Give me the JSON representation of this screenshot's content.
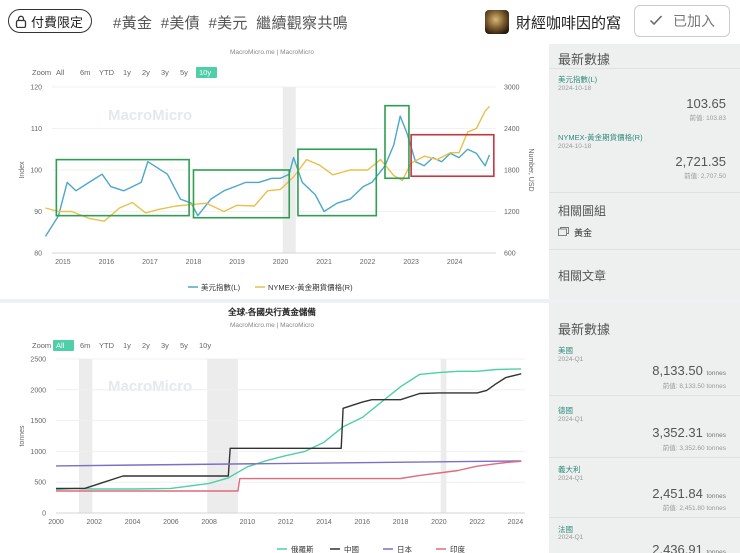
{
  "header": {
    "badge_label": "付費限定",
    "tags": [
      "#黃金",
      "#美債",
      "#美元",
      "繼續觀察共鳴"
    ],
    "channel_name": "財經咖啡因的窩",
    "joined_label": "已加入",
    "icons": {
      "badge": "lock-icon",
      "joined": "check-icon",
      "avatar": "channel-avatar"
    }
  },
  "top_panel": {
    "source": "MacroMicro.me | MacroMicro",
    "watermark": "MacroMicro",
    "zoom_label": "Zoom",
    "zoom_options": [
      "All",
      "6m",
      "YTD",
      "1y",
      "2y",
      "3y",
      "5y",
      "10y"
    ],
    "zoom_selected": "10y",
    "sidebar": {
      "title": "最新數據",
      "items": [
        {
          "name": "美元指數(L)",
          "date": "2024-10-18",
          "value": "103.65",
          "prev": "前值: 103.83"
        },
        {
          "name": "NYMEX-黃金期貨價格(R)",
          "date": "2024-10-18",
          "value": "2,721.35",
          "prev": "前值: 2,707.50"
        }
      ],
      "related_charts_title": "相關圖組",
      "related_chart_item": "黃金",
      "related_articles_title": "相關文章"
    }
  },
  "bottom_panel": {
    "title": "全球-各國央行黃金儲備",
    "source": "MacroMicro.me | MacroMicro",
    "watermark": "MacroMicro",
    "zoom_label": "Zoom",
    "zoom_options": [
      "All",
      "6m",
      "YTD",
      "1y",
      "2y",
      "3y",
      "5y",
      "10y"
    ],
    "zoom_selected": "All",
    "sidebar": {
      "title": "最新數據",
      "items": [
        {
          "name": "美國",
          "date": "2024-Q1",
          "value": "8,133.50",
          "unit": "tonnes",
          "prev": "前值: 8,133.50 tonnes"
        },
        {
          "name": "德國",
          "date": "2024-Q1",
          "value": "3,352.31",
          "unit": "tonnes",
          "prev": "前值: 3,352.60 tonnes"
        },
        {
          "name": "義大利",
          "date": "2024-Q1",
          "value": "2,451.84",
          "unit": "tonnes",
          "prev": "前值: 2,451.80 tonnes"
        },
        {
          "name": "法國",
          "date": "2024-Q1",
          "value": "2,436.91",
          "unit": "tonnes",
          "prev": ""
        }
      ]
    }
  },
  "chart_data": [
    {
      "type": "line",
      "ylabel_left": "Index",
      "ylabel_right": "Number, USD",
      "x_ticks": [
        "2015",
        "2016",
        "2017",
        "2018",
        "2019",
        "2020",
        "2021",
        "2022",
        "2023",
        "2024"
      ],
      "y_left_ticks": [
        80,
        90,
        100,
        110,
        120
      ],
      "y_right_ticks": [
        600,
        1200,
        1800,
        2400,
        3000
      ],
      "ylim_left": [
        80,
        120
      ],
      "ylim_right": [
        600,
        3000
      ],
      "series": [
        {
          "name": "美元指數(L)",
          "axis": "left",
          "color": "#4aa8c8",
          "x": [
            2014.6,
            2014.9,
            2015.1,
            2015.3,
            2015.6,
            2015.9,
            2016.1,
            2016.4,
            2016.6,
            2016.8,
            2016.95,
            2017.1,
            2017.4,
            2017.7,
            2017.95,
            2018.1,
            2018.4,
            2018.7,
            2018.95,
            2019.2,
            2019.5,
            2019.8,
            2020.0,
            2020.2,
            2020.3,
            2020.5,
            2020.8,
            2021.0,
            2021.3,
            2021.6,
            2021.9,
            2022.1,
            2022.4,
            2022.6,
            2022.75,
            2022.9,
            2023.1,
            2023.3,
            2023.5,
            2023.7,
            2023.9,
            2024.1,
            2024.3,
            2024.5,
            2024.7,
            2024.8
          ],
          "y": [
            84,
            89,
            97,
            95,
            97,
            99,
            96,
            95,
            96,
            97,
            102,
            101,
            99,
            93,
            92,
            89,
            93,
            95,
            96,
            97,
            97,
            98,
            98,
            99,
            103,
            97,
            94,
            90,
            92,
            93,
            96,
            97,
            101,
            106,
            113,
            109,
            102,
            101,
            103,
            102,
            104,
            103,
            105,
            104,
            101,
            103.65
          ]
        },
        {
          "name": "NYMEX-黃金期貨價格(R)",
          "axis": "right",
          "color": "#e8c04a",
          "x": [
            2014.6,
            2014.9,
            2015.2,
            2015.6,
            2015.95,
            2016.3,
            2016.6,
            2016.9,
            2017.2,
            2017.6,
            2017.95,
            2018.3,
            2018.7,
            2019.0,
            2019.4,
            2019.7,
            2020.0,
            2020.3,
            2020.6,
            2020.9,
            2021.2,
            2021.6,
            2022.0,
            2022.3,
            2022.6,
            2022.8,
            2023.0,
            2023.3,
            2023.6,
            2023.9,
            2024.1,
            2024.3,
            2024.5,
            2024.7,
            2024.8
          ],
          "y": [
            1250,
            1200,
            1200,
            1100,
            1060,
            1250,
            1330,
            1180,
            1230,
            1280,
            1300,
            1320,
            1200,
            1290,
            1280,
            1500,
            1520,
            1700,
            1950,
            1870,
            1730,
            1800,
            1800,
            1950,
            1720,
            1650,
            1900,
            2000,
            1950,
            2050,
            2050,
            2350,
            2400,
            2650,
            2721.35
          ]
        }
      ],
      "legend": "bottom"
    },
    {
      "type": "line",
      "title": "全球-各國央行黃金儲備",
      "ylabel": "tonnes",
      "x_ticks": [
        "2000",
        "2002",
        "2004",
        "2006",
        "2008",
        "2010",
        "2012",
        "2014",
        "2016",
        "2018",
        "2020",
        "2022",
        "2024"
      ],
      "y_ticks": [
        0,
        500,
        1000,
        1500,
        2000,
        2500
      ],
      "xlim": [
        2000,
        2024.5
      ],
      "ylim": [
        0,
        2500
      ],
      "legend": "bottom",
      "series": [
        {
          "name": "俄羅斯",
          "color": "#4ecfa8",
          "x": [
            2000,
            2001,
            2002,
            2004,
            2006,
            2008,
            2009,
            2010,
            2011,
            2012,
            2013,
            2014,
            2015,
            2016,
            2017,
            2018,
            2019,
            2020,
            2021,
            2022,
            2023,
            2024.3
          ],
          "y": [
            380,
            400,
            390,
            390,
            400,
            480,
            570,
            750,
            850,
            930,
            1000,
            1150,
            1400,
            1550,
            1800,
            2050,
            2250,
            2280,
            2300,
            2300,
            2330,
            2340
          ]
        },
        {
          "name": "中國",
          "color": "#333333",
          "x": [
            2000,
            2001.5,
            2002.5,
            2003.5,
            2004.5,
            2009,
            2009.1,
            2014.9,
            2015,
            2015.5,
            2016,
            2016.5,
            2017,
            2018,
            2019,
            2020,
            2021,
            2022,
            2022.5,
            2023,
            2023.5,
            2024.3
          ],
          "y": [
            400,
            400,
            500,
            600,
            600,
            600,
            1050,
            1050,
            1700,
            1750,
            1800,
            1840,
            1840,
            1840,
            1940,
            1950,
            1950,
            1950,
            1990,
            2100,
            2200,
            2260
          ]
        },
        {
          "name": "日本",
          "color": "#7c6fc4",
          "x": [
            2000,
            2024.3
          ],
          "y": [
            765,
            845
          ]
        },
        {
          "name": "印度",
          "color": "#e06a7e",
          "x": [
            2000,
            2009.5,
            2009.6,
            2017,
            2018,
            2019,
            2020,
            2021,
            2022,
            2023,
            2023.5,
            2024.3
          ],
          "y": [
            357,
            357,
            558,
            558,
            560,
            610,
            650,
            690,
            760,
            800,
            820,
            840
          ]
        }
      ]
    }
  ]
}
